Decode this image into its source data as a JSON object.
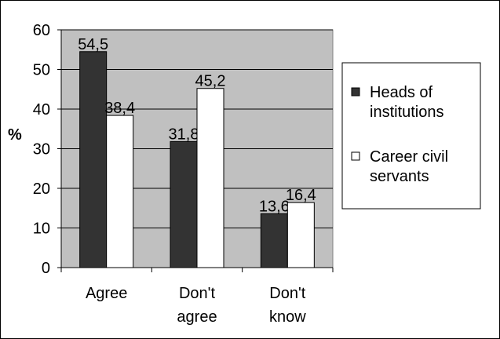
{
  "chart_data": {
    "type": "bar",
    "categories": [
      [
        "Agree"
      ],
      [
        "Don't",
        "agree"
      ],
      [
        "Don't",
        "know"
      ]
    ],
    "series": [
      {
        "name": [
          "Heads of",
          "institutions"
        ],
        "values": [
          54.5,
          31.8,
          13.6
        ],
        "value_labels": [
          "54,5",
          "31,8",
          "13,6"
        ],
        "color": "#333333"
      },
      {
        "name": [
          "Career civil",
          "servants"
        ],
        "values": [
          38.4,
          45.2,
          16.4
        ],
        "value_labels": [
          "38,4",
          "45,2",
          "16,4"
        ],
        "color": "#ffffff"
      }
    ],
    "ylabel": "%",
    "ylim": [
      0,
      60
    ],
    "yticks": [
      0,
      10,
      20,
      30,
      40,
      50,
      60
    ],
    "grid": true,
    "plot_background": "#c0c0c0",
    "legend_placement": "right"
  }
}
